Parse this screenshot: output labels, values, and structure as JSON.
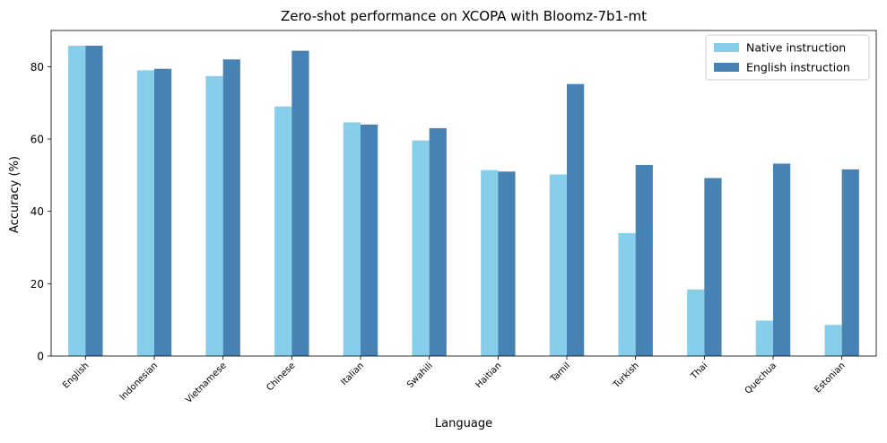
{
  "chart_data": {
    "type": "bar",
    "title": "Zero-shot performance on XCOPA with Bloomz-7b1-mt",
    "xlabel": "Language",
    "ylabel": "Accuracy (%)",
    "ylim": [
      0,
      90
    ],
    "yticks": [
      0,
      20,
      40,
      60,
      80
    ],
    "grid": false,
    "legend_position": "top-right",
    "categories": [
      "English",
      "Indonesian",
      "Vietnamese",
      "Chinese",
      "Italian",
      "Swahili",
      "Haitian",
      "Tamil",
      "Turkish",
      "Thai",
      "Quechua",
      "Estonian"
    ],
    "series": [
      {
        "name": "Native instruction",
        "color": "#87ceeb",
        "values": [
          85.8,
          79.0,
          77.4,
          69.0,
          64.6,
          59.6,
          51.4,
          50.2,
          34.0,
          18.4,
          9.8,
          8.6
        ]
      },
      {
        "name": "English instruction",
        "color": "#4682b4",
        "values": [
          85.8,
          79.4,
          82.0,
          84.4,
          64.0,
          63.0,
          51.0,
          75.2,
          52.8,
          49.2,
          53.2,
          51.6
        ]
      }
    ]
  }
}
